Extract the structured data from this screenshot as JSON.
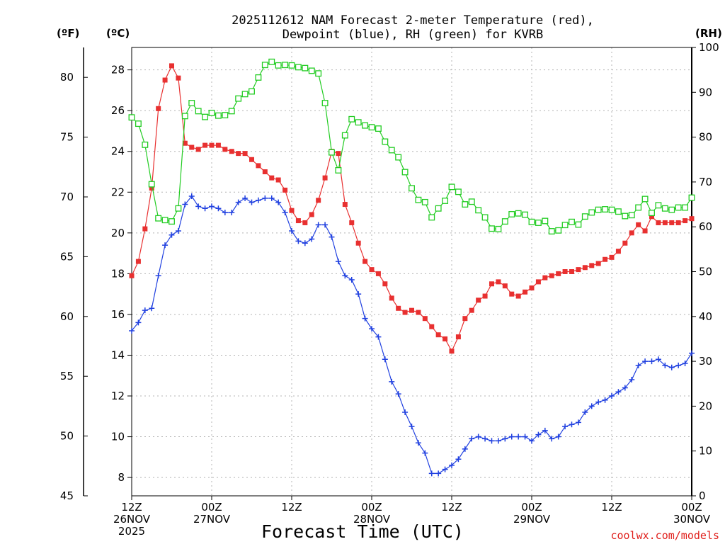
{
  "chart_data": {
    "type": "line",
    "title": [
      "2025112612 NAM Forecast 2-meter Temperature (red),",
      "Dewpoint (blue), RH (green) for KVRB"
    ],
    "xlabel": "Forecast Time (UTC)",
    "credit": "coolwx.com/models",
    "units": {
      "fahrenheit": "(ºF)",
      "celsius": "(ºC)",
      "rh": "(RH)"
    },
    "x_range_hours": [
      0,
      84
    ],
    "x_ticks": [
      {
        "hour": 0,
        "lines": [
          "12Z",
          "26NOV",
          "2025"
        ]
      },
      {
        "hour": 12,
        "lines": [
          "00Z",
          "27NOV"
        ]
      },
      {
        "hour": 24,
        "lines": [
          "12Z"
        ]
      },
      {
        "hour": 36,
        "lines": [
          "00Z",
          "28NOV"
        ]
      },
      {
        "hour": 48,
        "lines": [
          "12Z"
        ]
      },
      {
        "hour": 60,
        "lines": [
          "00Z",
          "29NOV"
        ]
      },
      {
        "hour": 72,
        "lines": [
          "12Z"
        ]
      },
      {
        "hour": 84,
        "lines": [
          "00Z",
          "30NOV"
        ]
      }
    ],
    "celsius_axis": {
      "range": [
        7.1,
        29.1
      ],
      "ticks": [
        8,
        10,
        12,
        14,
        16,
        18,
        20,
        22,
        24,
        26,
        28
      ]
    },
    "fahrenheit_axis": {
      "range": [
        45,
        82.5
      ],
      "ticks": [
        45,
        50,
        55,
        60,
        65,
        70,
        75,
        80
      ]
    },
    "rh_axis": {
      "range": [
        0,
        100
      ],
      "ticks": [
        0,
        10,
        20,
        30,
        40,
        50,
        60,
        70,
        80,
        90,
        100
      ]
    },
    "series": [
      {
        "name": "Temperature",
        "units": "C",
        "color": "#e83030",
        "marker": "filled-square",
        "values": [
          17.9,
          18.6,
          20.2,
          22.2,
          26.1,
          27.5,
          28.2,
          27.6,
          24.4,
          24.2,
          24.1,
          24.3,
          24.3,
          24.3,
          24.1,
          24.0,
          23.9,
          23.9,
          23.6,
          23.3,
          23.0,
          22.7,
          22.6,
          22.1,
          21.1,
          20.6,
          20.5,
          20.9,
          21.6,
          22.7,
          24.0,
          23.9,
          21.4,
          20.5,
          19.5,
          18.6,
          18.2,
          18.0,
          17.5,
          16.8,
          16.3,
          16.1,
          16.2,
          16.1,
          15.8,
          15.4,
          15.0,
          14.8,
          14.2,
          14.9,
          15.8,
          16.2,
          16.7,
          16.9,
          17.5,
          17.6,
          17.4,
          17.0,
          16.9,
          17.1,
          17.3,
          17.6,
          17.8,
          17.9,
          18.0,
          18.1,
          18.1,
          18.2,
          18.3,
          18.4,
          18.5,
          18.7,
          18.8,
          19.1,
          19.5,
          20.0,
          20.4,
          20.1,
          20.8,
          20.5,
          20.5,
          20.5,
          20.5,
          20.6,
          20.7
        ]
      },
      {
        "name": "Dewpoint",
        "units": "C",
        "color": "#2040e0",
        "marker": "plus",
        "values": [
          15.2,
          15.6,
          16.2,
          16.3,
          17.9,
          19.4,
          19.9,
          20.1,
          21.4,
          21.8,
          21.3,
          21.2,
          21.3,
          21.2,
          21.0,
          21.0,
          21.5,
          21.7,
          21.5,
          21.6,
          21.7,
          21.7,
          21.5,
          21.0,
          20.1,
          19.6,
          19.5,
          19.7,
          20.4,
          20.4,
          19.8,
          18.6,
          17.9,
          17.7,
          17.0,
          15.8,
          15.3,
          14.9,
          13.8,
          12.7,
          12.1,
          11.2,
          10.5,
          9.7,
          9.2,
          8.2,
          8.2,
          8.4,
          8.6,
          8.9,
          9.4,
          9.9,
          10.0,
          9.9,
          9.8,
          9.8,
          9.9,
          10.0,
          10.0,
          10.0,
          9.8,
          10.1,
          10.3,
          9.9,
          10.0,
          10.5,
          10.6,
          10.7,
          11.2,
          11.5,
          11.7,
          11.8,
          12.0,
          12.2,
          12.4,
          12.8,
          13.5,
          13.7,
          13.7,
          13.8,
          13.5,
          13.4,
          13.5,
          13.6,
          14.1
        ]
      },
      {
        "name": "RH",
        "units": "%",
        "color": "#22cc22",
        "marker": "open-square",
        "values": [
          84.4,
          83,
          78.3,
          69.5,
          61.9,
          61.5,
          61.2,
          64.1,
          84.7,
          87.6,
          85.8,
          84.5,
          85.4,
          84.8,
          84.9,
          85.8,
          88.6,
          89.6,
          90.2,
          93.3,
          96.1,
          96.8,
          96.0,
          96.1,
          96.0,
          95.6,
          95.4,
          94.8,
          94.2,
          87.6,
          76.6,
          72.6,
          80.4,
          84.0,
          83.3,
          82.6,
          82.2,
          81.9,
          79.0,
          77.1,
          75.5,
          72.2,
          68.6,
          66.0,
          65.5,
          62.1,
          64.1,
          65.8,
          68.9,
          67.8,
          65.0,
          65.6,
          63.7,
          62.1,
          59.6,
          59.5,
          61.2,
          62.8,
          63.0,
          62.7,
          61.1,
          60.9,
          61.3,
          59.0,
          59.2,
          60.4,
          61.1,
          60.5,
          62.3,
          63.2,
          63.8,
          63.9,
          63.8,
          63.4,
          62.4,
          62.6,
          64.3,
          66.2,
          63.1,
          64.8,
          64.1,
          63.8,
          64.3,
          64.3,
          66.5
        ]
      }
    ]
  }
}
